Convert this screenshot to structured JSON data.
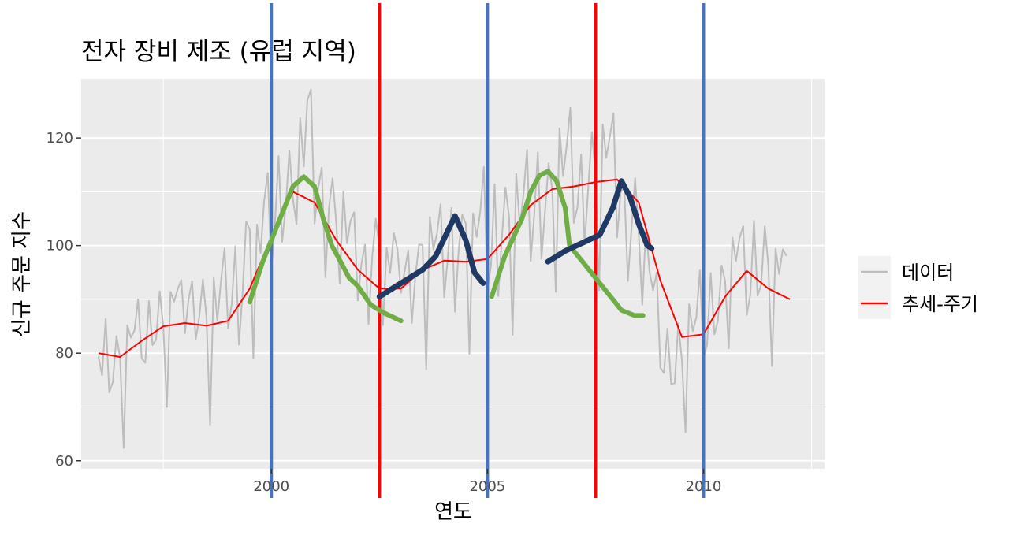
{
  "chart_data": {
    "type": "line",
    "title": "전자 장비 제조 (유럽 지역)",
    "xlabel": "연도",
    "ylabel": "신규 주문 지수",
    "xlim": [
      1995.6,
      2012.8
    ],
    "ylim": [
      58.5,
      131
    ],
    "x_ticks": [
      2000,
      2005,
      2010
    ],
    "y_ticks": [
      60,
      80,
      100,
      120
    ],
    "grid": true,
    "legend_position": "right",
    "legend": [
      "데이터",
      "추세-주기"
    ],
    "colors": {
      "data": "#bdbdbd",
      "trend": "#ff0000",
      "blue_lines": "#4472c4",
      "red_lines": "#ff0000",
      "green_curves": "#70ad47",
      "navy_curves": "#1f3864",
      "panel": "#ebebeb",
      "grid": "#ffffff"
    },
    "series": [
      {
        "name": "데이터",
        "x": [
          1996.0,
          1996.083,
          1996.167,
          1996.25,
          1996.333,
          1996.417,
          1996.5,
          1996.583,
          1996.667,
          1996.75,
          1996.833,
          1996.917,
          1997.0,
          1997.083,
          1997.167,
          1997.25,
          1997.333,
          1997.417,
          1997.5,
          1997.583,
          1997.667,
          1997.75,
          1997.833,
          1997.917,
          1998.0,
          1998.083,
          1998.167,
          1998.25,
          1998.333,
          1998.417,
          1998.5,
          1998.583,
          1998.667,
          1998.75,
          1998.833,
          1998.917,
          1999.0,
          1999.083,
          1999.167,
          1999.25,
          1999.333,
          1999.417,
          1999.5,
          1999.583,
          1999.667,
          1999.75,
          1999.833,
          1999.917,
          2000.0,
          2000.083,
          2000.167,
          2000.25,
          2000.333,
          2000.417,
          2000.5,
          2000.583,
          2000.667,
          2000.75,
          2000.833,
          2000.917,
          2001.0,
          2001.083,
          2001.167,
          2001.25,
          2001.333,
          2001.417,
          2001.5,
          2001.583,
          2001.667,
          2001.75,
          2001.833,
          2001.917,
          2002.0,
          2002.083,
          2002.167,
          2002.25,
          2002.333,
          2002.417,
          2002.5,
          2002.583,
          2002.667,
          2002.75,
          2002.833,
          2002.917,
          2003.0,
          2003.083,
          2003.167,
          2003.25,
          2003.333,
          2003.417,
          2003.5,
          2003.583,
          2003.667,
          2003.75,
          2003.833,
          2003.917,
          2004.0,
          2004.083,
          2004.167,
          2004.25,
          2004.333,
          2004.417,
          2004.5,
          2004.583,
          2004.667,
          2004.75,
          2004.833,
          2004.917,
          2005.0,
          2005.083,
          2005.167,
          2005.25,
          2005.333,
          2005.417,
          2005.5,
          2005.583,
          2005.667,
          2005.75,
          2005.833,
          2005.917,
          2006.0,
          2006.083,
          2006.167,
          2006.25,
          2006.333,
          2006.417,
          2006.5,
          2006.583,
          2006.667,
          2006.75,
          2006.833,
          2006.917,
          2007.0,
          2007.083,
          2007.167,
          2007.25,
          2007.333,
          2007.417,
          2007.5,
          2007.583,
          2007.667,
          2007.75,
          2007.833,
          2007.917,
          2008.0,
          2008.083,
          2008.167,
          2008.25,
          2008.333,
          2008.417,
          2008.5,
          2008.583,
          2008.667,
          2008.75,
          2008.833,
          2008.917,
          2009.0,
          2009.083,
          2009.167,
          2009.25,
          2009.333,
          2009.417,
          2009.5,
          2009.583,
          2009.667,
          2009.75,
          2009.833,
          2009.917,
          2010.0,
          2010.083,
          2010.167,
          2010.25,
          2010.333,
          2010.417,
          2010.5,
          2010.583,
          2010.667,
          2010.75,
          2010.833,
          2010.917,
          2011.0,
          2011.083,
          2011.167,
          2011.25,
          2011.333,
          2011.417,
          2011.5,
          2011.583,
          2011.667,
          2011.75,
          2011.833,
          2011.917
        ],
        "y": [
          79.4,
          75.9,
          86.4,
          72.7,
          74.7,
          83.2,
          79.2,
          62.4,
          85.2,
          82.9,
          84.2,
          90.0,
          79.0,
          78.2,
          89.7,
          81.5,
          82.5,
          91.5,
          84.8,
          70.0,
          91.4,
          89.6,
          91.9,
          93.6,
          83.7,
          89.9,
          93.4,
          82.5,
          86.8,
          93.7,
          86.5,
          66.6,
          94.0,
          86.0,
          93.4,
          99.5,
          84.6,
          89.2,
          99.9,
          81.6,
          91.1,
          104.5,
          103.0,
          79.1,
          103.9,
          98.6,
          108.3,
          113.5,
          95.2,
          104.1,
          116.6,
          100.7,
          107.3,
          117.6,
          108.7,
          104.0,
          123.7,
          114.7,
          127.0,
          129.0,
          104.1,
          110.6,
          114.5,
          94.1,
          107.0,
          112.5,
          104.4,
          92.9,
          110.0,
          100.4,
          104.6,
          106.2,
          89.8,
          96.5,
          100.2,
          85.4,
          97.7,
          105.0,
          99.7,
          85.2,
          99.6,
          94.9,
          102.3,
          99.3,
          91.2,
          95.2,
          99.1,
          85.6,
          94.4,
          100.2,
          100.1,
          77.0,
          105.3,
          99.3,
          102.3,
          107.7,
          90.4,
          97.8,
          107.0,
          87.7,
          99.0,
          105.7,
          104.1,
          79.9,
          106.0,
          101.6,
          106.2,
          114.6,
          91.8,
          96.3,
          111.4,
          90.6,
          101.2,
          110.8,
          105.4,
          83.4,
          113.3,
          103.5,
          109.4,
          117.8,
          97.1,
          105.6,
          117.3,
          97.5,
          106.3,
          115.3,
          110.4,
          91.4,
          121.8,
          112.9,
          118.6,
          125.6,
          104.2,
          107.2,
          116.9,
          100.2,
          110.9,
          121.1,
          113.4,
          91.7,
          122.5,
          116.3,
          120.3,
          124.6,
          101.5,
          110.0,
          110.7,
          93.4,
          103.1,
          112.5,
          102.1,
          89.0,
          103.4,
          95.1,
          91.7,
          95.0,
          77.3,
          76.3,
          84.6,
          74.3,
          74.4,
          85.5,
          78.6,
          65.3,
          89.1,
          84.1,
          86.6,
          95.4,
          79.1,
          81.6,
          94.9,
          83.5,
          86.0,
          96.3,
          93.4,
          80.9,
          101.5,
          97.1,
          101.4,
          103.6,
          87.1,
          90.9,
          104.6,
          90.7,
          92.7,
          103.6,
          96.3,
          77.6,
          99.4,
          94.7,
          99.3,
          98.1
        ]
      },
      {
        "name": "추세-주기",
        "x": [
          1996.0,
          1996.5,
          1997.0,
          1997.5,
          1998.0,
          1998.5,
          1999.0,
          1999.5,
          2000.0,
          2000.5,
          2001.0,
          2001.5,
          2002.0,
          2002.5,
          2003.0,
          2003.5,
          2004.0,
          2004.5,
          2005.0,
          2005.5,
          2006.0,
          2006.5,
          2007.0,
          2007.5,
          2008.0,
          2008.5,
          2009.0,
          2009.5,
          2010.0,
          2010.5,
          2011.0,
          2011.5,
          2012.0
        ],
        "y": [
          80.0,
          79.3,
          82.3,
          85.0,
          85.6,
          85.1,
          86.0,
          92.0,
          101.5,
          110.0,
          108.0,
          101.0,
          95.5,
          92.0,
          92.0,
          95.5,
          97.2,
          97.0,
          97.5,
          102.0,
          107.5,
          110.5,
          111.0,
          111.8,
          112.3,
          108.0,
          93.5,
          83.0,
          83.5,
          90.5,
          95.3,
          92.0,
          90.0
        ]
      }
    ],
    "overlay_vertical_lines": [
      {
        "color": "blue",
        "x": 2000.0
      },
      {
        "color": "red",
        "x": 2002.5
      },
      {
        "color": "blue",
        "x": 2005.0
      },
      {
        "color": "red",
        "x": 2007.5
      },
      {
        "color": "blue",
        "x": 2010.0
      }
    ],
    "overlay_curves": [
      {
        "color": "green",
        "points": [
          [
            1999.5,
            89.5
          ],
          [
            1999.8,
            97
          ],
          [
            2000.1,
            103
          ],
          [
            2000.3,
            107
          ],
          [
            2000.5,
            111
          ],
          [
            2000.75,
            112.8
          ],
          [
            2001.0,
            111
          ],
          [
            2001.2,
            105
          ],
          [
            2001.4,
            100
          ],
          [
            2001.6,
            97
          ],
          [
            2001.8,
            94
          ],
          [
            2002.0,
            92.5
          ],
          [
            2002.3,
            89
          ],
          [
            2002.6,
            87.5
          ],
          [
            2003.0,
            86
          ]
        ]
      },
      {
        "color": "navy",
        "points": [
          [
            2002.5,
            90.5
          ],
          [
            2003.0,
            93
          ],
          [
            2003.5,
            95.5
          ],
          [
            2003.8,
            98
          ],
          [
            2004.1,
            103
          ],
          [
            2004.25,
            105.5
          ],
          [
            2004.5,
            101
          ],
          [
            2004.7,
            95
          ],
          [
            2004.9,
            93
          ]
        ]
      },
      {
        "color": "green",
        "points": [
          [
            2005.1,
            90.5
          ],
          [
            2005.4,
            98
          ],
          [
            2005.8,
            105
          ],
          [
            2006.0,
            110
          ],
          [
            2006.2,
            113
          ],
          [
            2006.4,
            113.8
          ],
          [
            2006.6,
            112
          ],
          [
            2006.8,
            107
          ],
          [
            2006.9,
            100
          ],
          [
            2007.2,
            97
          ],
          [
            2007.5,
            94
          ],
          [
            2007.8,
            91
          ],
          [
            2008.1,
            88
          ],
          [
            2008.4,
            87
          ],
          [
            2008.6,
            87
          ]
        ]
      },
      {
        "color": "navy",
        "points": [
          [
            2006.4,
            97
          ],
          [
            2006.8,
            99
          ],
          [
            2007.2,
            100.5
          ],
          [
            2007.6,
            102
          ],
          [
            2007.9,
            107
          ],
          [
            2008.1,
            112
          ],
          [
            2008.3,
            109
          ],
          [
            2008.5,
            104
          ],
          [
            2008.7,
            100
          ],
          [
            2008.8,
            99.5
          ]
        ]
      }
    ]
  }
}
